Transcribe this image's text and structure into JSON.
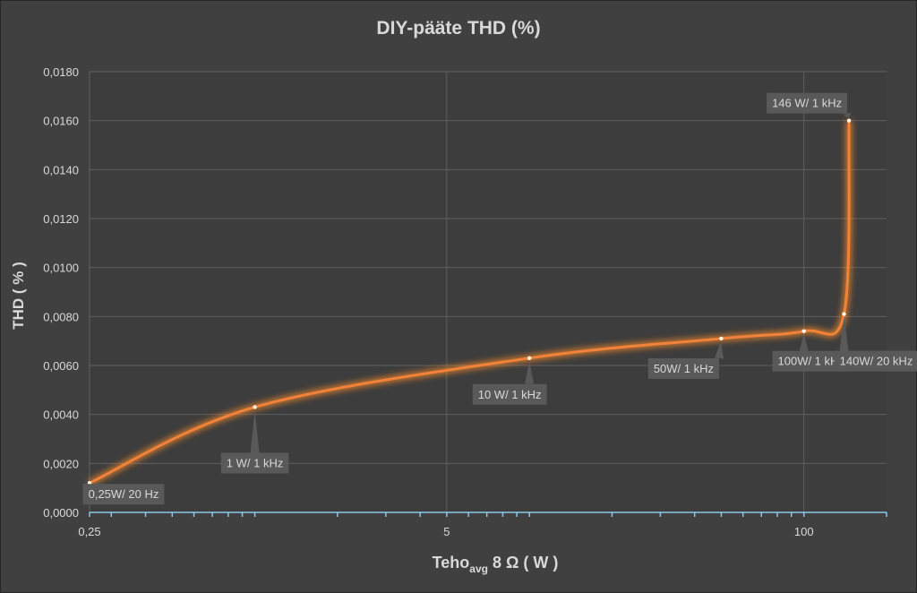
{
  "chart_data": {
    "type": "line",
    "title": "DIY-pääte THD (%)",
    "xlabel_main": "Teho",
    "xlabel_sub": "avg",
    "xlabel_rest": " 8 Ω ( W )",
    "ylabel": "THD ( % )",
    "x_scale": "log",
    "xlim": [
      0.25,
      200
    ],
    "ylim": [
      0,
      0.018
    ],
    "x_tick_labels": [
      {
        "value": 0.25,
        "label": "0,25"
      },
      {
        "value": 5,
        "label": "5"
      },
      {
        "value": 100,
        "label": "100"
      }
    ],
    "y_ticks": [
      0,
      0.002,
      0.004,
      0.006,
      0.008,
      0.01,
      0.012,
      0.014,
      0.016,
      0.018
    ],
    "y_tick_labels": [
      "0,0000",
      "0,0020",
      "0,0040",
      "0,0060",
      "0,0080",
      "0,0100",
      "0,0120",
      "0,0140",
      "0,0160",
      "0,0180"
    ],
    "grid": true,
    "series": [
      {
        "points": [
          {
            "x": 0.25,
            "y": 0.0012,
            "label": "0,25W/ 20 Hz"
          },
          {
            "x": 1,
            "y": 0.0043,
            "label": "1 W/ 1 kHz"
          },
          {
            "x": 10,
            "y": 0.0063,
            "label": "10 W/ 1 kHz"
          },
          {
            "x": 50,
            "y": 0.0071,
            "label": "50W/ 1 kHz"
          },
          {
            "x": 100,
            "y": 0.0074,
            "label": "100W/ 1 kHz"
          },
          {
            "x": 140,
            "y": 0.0081,
            "label": "140W/ 20 kHz"
          },
          {
            "x": 146,
            "y": 0.016,
            "label": "146 W/ 1 kHz"
          }
        ]
      }
    ],
    "colors": {
      "background": "#404040",
      "plot": "#3d3d3d",
      "grid": "#5f5f5f",
      "line": "#f0823a",
      "glow": "#ff8c2a",
      "axis": "#8cc8e8",
      "text": "#d9d9d9",
      "label_bg": "#595959"
    }
  }
}
